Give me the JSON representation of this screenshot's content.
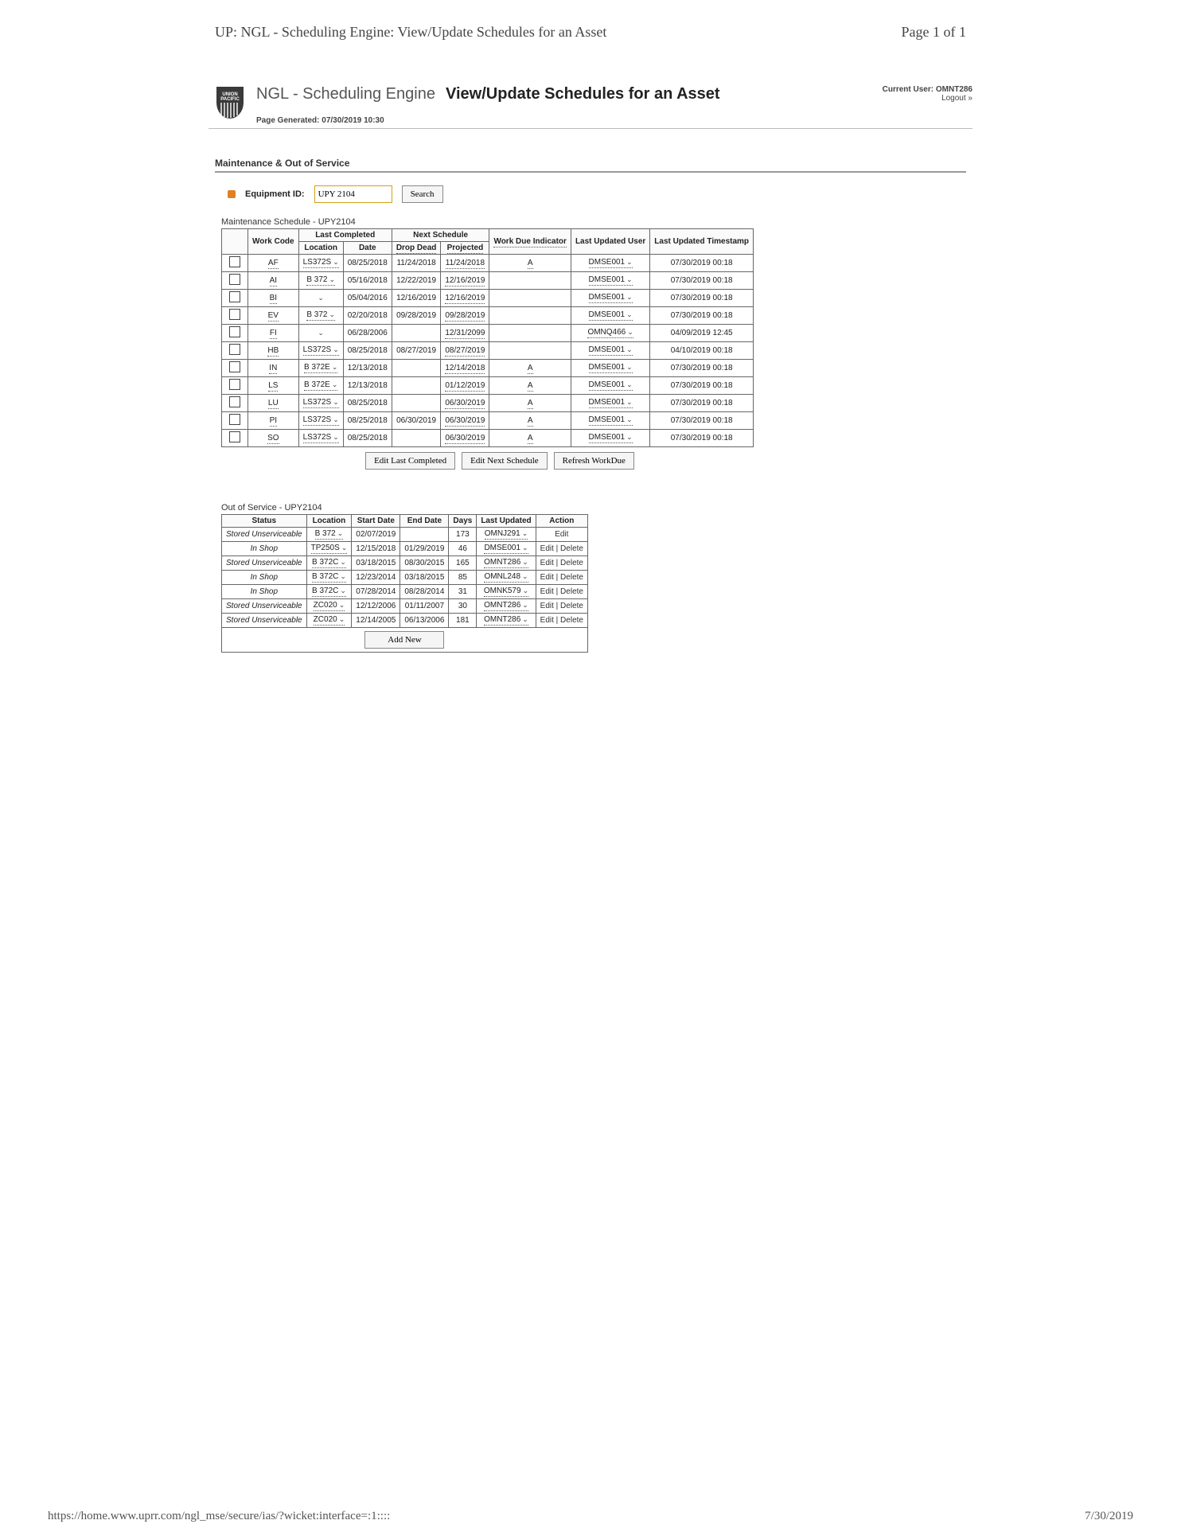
{
  "print_header": {
    "title": "UP: NGL - Scheduling Engine: View/Update Schedules for an Asset",
    "page": "Page 1 of 1"
  },
  "app": {
    "title": "NGL - Scheduling Engine",
    "subtitle": "View/Update Schedules for an Asset"
  },
  "user": {
    "label": "Current User:",
    "name": "OMNT286",
    "logout": "Logout »"
  },
  "generated": {
    "label": "Page Generated:",
    "value": "07/30/2019 10:30"
  },
  "sections": {
    "maint": "Maintenance & Out of Service"
  },
  "search": {
    "label": "Equipment ID:",
    "value": "UPY 2104",
    "button": "Search"
  },
  "maint": {
    "subhead": "Maintenance Schedule - UPY2104",
    "headers": {
      "work_code": "Work Code",
      "last_completed": "Last Completed",
      "next_schedule": "Next Schedule",
      "work_due": "Work Due Indicator",
      "last_user": "Last Updated User",
      "last_ts": "Last Updated Timestamp",
      "location": "Location",
      "date": "Date",
      "drop_dead": "Drop Dead",
      "projected": "Projected"
    },
    "rows": [
      {
        "wc": "AF",
        "loc": "LS372S",
        "date": "08/25/2018",
        "dd": "11/24/2018",
        "proj": "11/24/2018",
        "ind": "A",
        "user": "DMSE001",
        "ts": "07/30/2019 00:18"
      },
      {
        "wc": "AI",
        "loc": "B  372",
        "date": "05/16/2018",
        "dd": "12/22/2019",
        "proj": "12/16/2019",
        "ind": "",
        "user": "DMSE001",
        "ts": "07/30/2019 00:18"
      },
      {
        "wc": "BI",
        "loc": "",
        "date": "05/04/2016",
        "dd": "12/16/2019",
        "proj": "12/16/2019",
        "ind": "",
        "user": "DMSE001",
        "ts": "07/30/2019 00:18"
      },
      {
        "wc": "EV",
        "loc": "B  372",
        "date": "02/20/2018",
        "dd": "09/28/2019",
        "proj": "09/28/2019",
        "ind": "",
        "user": "DMSE001",
        "ts": "07/30/2019 00:18"
      },
      {
        "wc": "FI",
        "loc": "",
        "date": "06/28/2006",
        "dd": "",
        "proj": "12/31/2099",
        "ind": "",
        "user": "OMNQ466",
        "ts": "04/09/2019 12:45"
      },
      {
        "wc": "HB",
        "loc": "LS372S",
        "date": "08/25/2018",
        "dd": "08/27/2019",
        "proj": "08/27/2019",
        "ind": "",
        "user": "DMSE001",
        "ts": "04/10/2019 00:18"
      },
      {
        "wc": "IN",
        "loc": "B  372E",
        "date": "12/13/2018",
        "dd": "",
        "proj": "12/14/2018",
        "ind": "A",
        "user": "DMSE001",
        "ts": "07/30/2019 00:18"
      },
      {
        "wc": "LS",
        "loc": "B  372E",
        "date": "12/13/2018",
        "dd": "",
        "proj": "01/12/2019",
        "ind": "A",
        "user": "DMSE001",
        "ts": "07/30/2019 00:18"
      },
      {
        "wc": "LU",
        "loc": "LS372S",
        "date": "08/25/2018",
        "dd": "",
        "proj": "06/30/2019",
        "ind": "A",
        "user": "DMSE001",
        "ts": "07/30/2019 00:18"
      },
      {
        "wc": "PI",
        "loc": "LS372S",
        "date": "08/25/2018",
        "dd": "06/30/2019",
        "proj": "06/30/2019",
        "ind": "A",
        "user": "DMSE001",
        "ts": "07/30/2019 00:18"
      },
      {
        "wc": "SO",
        "loc": "LS372S",
        "date": "08/25/2018",
        "dd": "",
        "proj": "06/30/2019",
        "ind": "A",
        "user": "DMSE001",
        "ts": "07/30/2019 00:18"
      }
    ],
    "buttons": {
      "edit_last": "Edit Last Completed",
      "edit_next": "Edit Next Schedule",
      "refresh": "Refresh WorkDue"
    }
  },
  "oos": {
    "subhead": "Out of Service - UPY2104",
    "headers": {
      "status": "Status",
      "location": "Location",
      "start": "Start Date",
      "end": "End Date",
      "days": "Days",
      "last": "Last Updated",
      "action": "Action"
    },
    "rows": [
      {
        "status": "Stored Unserviceable",
        "loc": "B  372",
        "start": "02/07/2019",
        "end": "",
        "days": "173",
        "user": "OMNJ291",
        "action": "Edit"
      },
      {
        "status": "In Shop",
        "loc": "TP250S",
        "start": "12/15/2018",
        "end": "01/29/2019",
        "days": "46",
        "user": "DMSE001",
        "action": "Edit | Delete"
      },
      {
        "status": "Stored Unserviceable",
        "loc": "B  372C",
        "start": "03/18/2015",
        "end": "08/30/2015",
        "days": "165",
        "user": "OMNT286",
        "action": "Edit | Delete"
      },
      {
        "status": "In Shop",
        "loc": "B  372C",
        "start": "12/23/2014",
        "end": "03/18/2015",
        "days": "85",
        "user": "OMNL248",
        "action": "Edit | Delete"
      },
      {
        "status": "In Shop",
        "loc": "B  372C",
        "start": "07/28/2014",
        "end": "08/28/2014",
        "days": "31",
        "user": "OMNK579",
        "action": "Edit | Delete"
      },
      {
        "status": "Stored Unserviceable",
        "loc": "ZC020",
        "start": "12/12/2006",
        "end": "01/11/2007",
        "days": "30",
        "user": "OMNT286",
        "action": "Edit | Delete"
      },
      {
        "status": "Stored Unserviceable",
        "loc": "ZC020",
        "start": "12/14/2005",
        "end": "06/13/2006",
        "days": "181",
        "user": "OMNT286",
        "action": "Edit | Delete"
      }
    ],
    "add": "Add New"
  },
  "footer": {
    "url": "https://home.www.uprr.com/ngl_mse/secure/ias/?wicket:interface=:1::::",
    "date": "7/30/2019"
  }
}
